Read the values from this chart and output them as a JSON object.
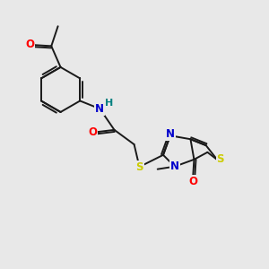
{
  "background_color": "#e8e8e8",
  "bond_color": "#1a1a1a",
  "bond_width": 1.4,
  "atom_colors": {
    "O": "#ff0000",
    "N": "#0000cc",
    "S": "#cccc00",
    "H": "#008080",
    "C": "#1a1a1a"
  },
  "font_size_atom": 8.5,
  "font_size_small": 7.0,
  "xlim": [
    0,
    10
  ],
  "ylim": [
    0,
    10
  ]
}
